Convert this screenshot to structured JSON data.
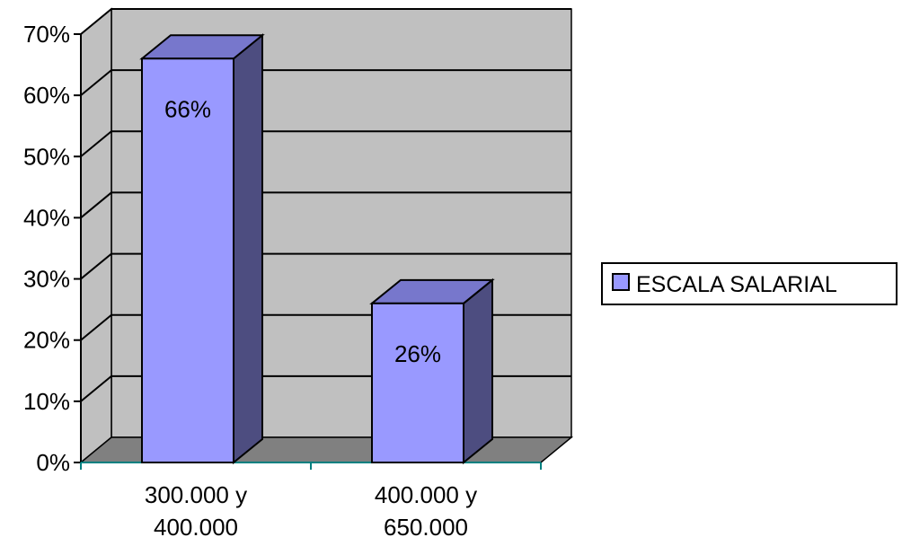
{
  "chart_data": {
    "type": "bar",
    "categories": [
      [
        "300.000 y",
        "400.000"
      ],
      [
        "400.000 y",
        "650.000"
      ]
    ],
    "series": [
      {
        "name": "ESCALA SALARIAL",
        "values": [
          0.66,
          0.26
        ],
        "data_labels": [
          "66%",
          "26%"
        ]
      }
    ],
    "ylim": [
      0,
      0.7
    ],
    "yticks": [
      0,
      0.1,
      0.2,
      0.3,
      0.4,
      0.5,
      0.6,
      0.7
    ],
    "ytick_labels": [
      "0%",
      "10%",
      "20%",
      "30%",
      "40%",
      "50%",
      "60%",
      "70%"
    ],
    "grid": true,
    "three_d": true,
    "legend_position": "right",
    "colors": {
      "bar_front": "#9999ff",
      "bar_top": "#7777cc",
      "bar_side": "#4d4d80",
      "wall": "#c0c0c0",
      "floor": "#808080",
      "axis": "#008080"
    }
  }
}
